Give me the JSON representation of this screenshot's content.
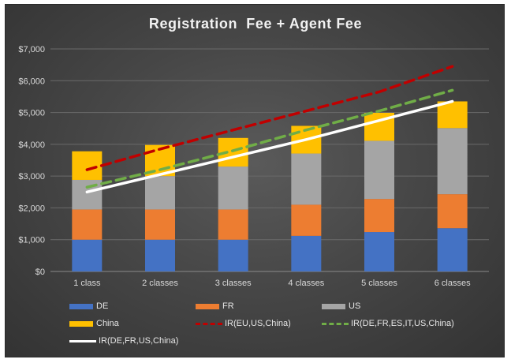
{
  "chart_data": {
    "type": "bar",
    "title": "Registration  Fee + Agent Fee",
    "categories": [
      "1 class",
      "2 classes",
      "3 classes",
      "4 classes",
      "5 classes",
      "6 classes"
    ],
    "ylim": [
      0,
      7000
    ],
    "yticks": [
      "$0",
      "$1,000",
      "$2,000",
      "$3,000",
      "$4,000",
      "$5,000",
      "$6,000",
      "$7,000"
    ],
    "grid": true,
    "legend_position": "bottom",
    "stacked": true,
    "series": [
      {
        "name": "DE",
        "kind": "bar",
        "color": "#4472c4",
        "values": [
          1000,
          1000,
          1000,
          1120,
          1240,
          1360
        ]
      },
      {
        "name": "FR",
        "kind": "bar",
        "color": "#ed7d31",
        "values": [
          950,
          950,
          950,
          980,
          1040,
          1070
        ]
      },
      {
        "name": "US",
        "kind": "bar",
        "color": "#a5a5a5",
        "values": [
          930,
          1050,
          1350,
          1610,
          1830,
          2080
        ]
      },
      {
        "name": "China",
        "kind": "bar",
        "color": "#ffc000",
        "values": [
          900,
          980,
          900,
          870,
          880,
          840
        ]
      },
      {
        "name": "IR(EU,US,China)",
        "kind": "line",
        "dash": "dashed",
        "color": "#c00000",
        "values": [
          3200,
          3850,
          4450,
          5050,
          5650,
          6450
        ]
      },
      {
        "name": "IR(DE,FR,ES,IT,US,China)",
        "kind": "line",
        "dash": "dashed",
        "color": "#70ad47",
        "values": [
          2650,
          3200,
          3800,
          4450,
          5050,
          5700
        ]
      },
      {
        "name": "IR(DE,FR,US,China)",
        "kind": "line",
        "dash": "solid",
        "color": "#ffffff",
        "values": [
          2500,
          3050,
          3600,
          4150,
          4750,
          5350
        ]
      }
    ]
  }
}
